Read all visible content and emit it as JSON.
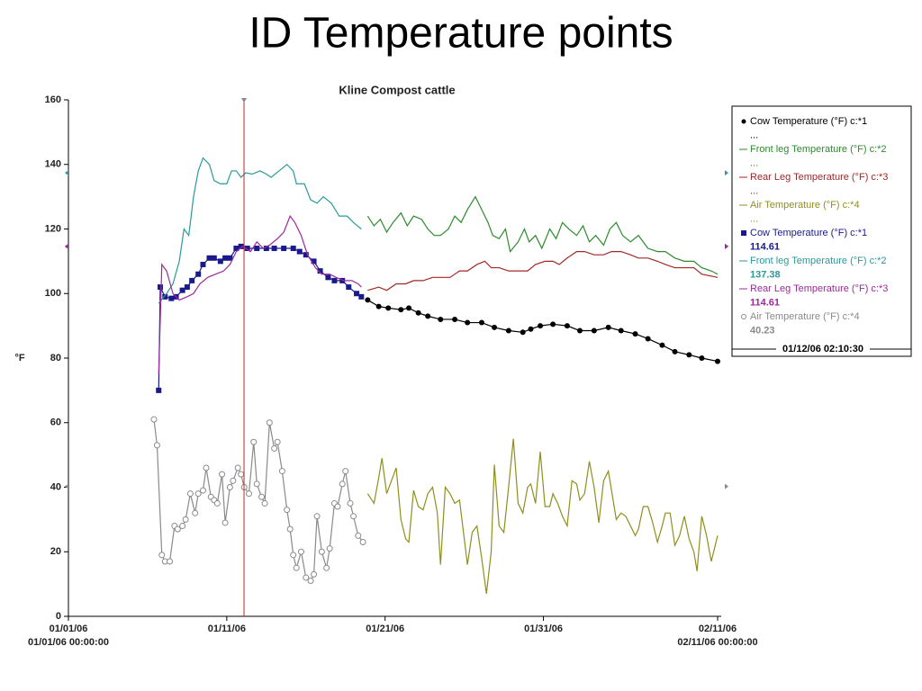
{
  "title": "ID Temperature points",
  "chart_data": {
    "type": "line",
    "title": "Kline Compost cattle",
    "y_label": "°F",
    "xlim": [
      0,
      41
    ],
    "xticks": [
      {
        "value": 0,
        "label": "01/01/06"
      },
      {
        "value": 10,
        "label": "01/11/06"
      },
      {
        "value": 20,
        "label": "01/21/06"
      },
      {
        "value": 30,
        "label": "01/31/06"
      },
      {
        "value": 41,
        "label": "02/11/06"
      }
    ],
    "x_range_labels": [
      "01/01/06 00:00:00",
      "02/11/06 00:00:00"
    ],
    "ylim": [
      0,
      160
    ],
    "yticks": [
      0,
      20,
      40,
      60,
      80,
      100,
      120,
      140,
      160
    ],
    "cursor": {
      "x": 11.09,
      "label": "01/12/06 02:10:30",
      "color": "#cc2222"
    },
    "series": [
      {
        "name": "Cow Temperature (°F) c:*1",
        "legend_value": "...",
        "color": "#000000",
        "marker": "circle",
        "x": [
          18.9,
          19.6,
          20.2,
          21.0,
          21.5,
          22.1,
          22.7,
          23.5,
          24.4,
          25.2,
          26.1,
          26.9,
          27.8,
          28.7,
          29.2,
          29.8,
          30.6,
          31.5,
          32.3,
          33.2,
          34.1,
          34.9,
          35.8,
          36.6,
          37.5,
          38.3,
          39.2,
          40.0,
          41.0
        ],
        "values": [
          98,
          96,
          95.5,
          95,
          95.5,
          94,
          93,
          92,
          92,
          91,
          91,
          89.5,
          88.5,
          88,
          89,
          90,
          90.5,
          90,
          88.5,
          88.5,
          89.5,
          88.5,
          87.5,
          86,
          84,
          82,
          81,
          80,
          79
        ]
      },
      {
        "name": "Front leg Temperature (°F) c:*2",
        "legend_value": "...",
        "color": "#2e8b2e",
        "marker": "none",
        "x": [
          18.9,
          19.3,
          19.7,
          20.1,
          20.5,
          21.0,
          21.4,
          21.8,
          22.3,
          22.7,
          23.1,
          23.5,
          24.0,
          24.4,
          24.8,
          25.2,
          25.7,
          26.1,
          26.5,
          26.8,
          27.2,
          27.6,
          27.9,
          28.4,
          28.8,
          29.1,
          29.5,
          29.9,
          30.4,
          30.8,
          31.2,
          31.6,
          32.1,
          32.5,
          32.9,
          33.3,
          33.8,
          34.2,
          34.6,
          35.0,
          35.5,
          36.0,
          36.6,
          37.2,
          37.7,
          38.3,
          38.9,
          39.5,
          40.0,
          40.6,
          41.0
        ],
        "values": [
          124,
          121,
          123,
          119,
          122,
          125,
          121,
          124,
          123,
          120,
          118,
          118,
          120,
          124,
          122,
          126,
          130,
          126,
          122,
          118,
          117,
          120,
          113,
          116,
          120,
          116,
          118,
          114,
          120,
          117,
          122,
          120,
          118,
          121,
          116,
          118,
          115,
          120,
          122,
          118,
          116,
          118,
          114,
          113,
          113,
          111,
          110,
          110,
          108,
          107,
          106
        ]
      },
      {
        "name": "Rear Leg Temperature (°F) c:*3",
        "legend_value": "...",
        "color": "#a02828",
        "marker": "none",
        "x": [
          18.9,
          19.6,
          20.1,
          20.7,
          21.3,
          21.8,
          22.4,
          23.0,
          23.5,
          24.1,
          24.7,
          25.2,
          25.8,
          26.3,
          26.7,
          27.2,
          27.8,
          28.4,
          29.0,
          29.5,
          30.1,
          30.6,
          31.0,
          31.5,
          32.1,
          32.6,
          33.2,
          33.8,
          34.3,
          34.9,
          35.5,
          36.0,
          36.6,
          37.2,
          37.7,
          38.3,
          38.9,
          39.5,
          40.0,
          41.0
        ],
        "values": [
          101,
          102,
          101,
          103,
          103,
          104,
          104,
          105,
          105,
          105,
          107,
          107,
          109,
          110,
          108,
          108,
          107,
          107,
          107,
          109,
          110,
          110,
          109,
          111,
          113,
          113,
          112,
          112,
          113,
          113,
          112,
          111,
          111,
          110,
          109,
          108,
          108,
          108,
          106,
          105
        ]
      },
      {
        "name": "Air Temperature (°F) c:*4",
        "legend_value": "...",
        "color": "#8f8f1e",
        "marker": "none",
        "x": [
          18.9,
          19.3,
          19.6,
          19.8,
          20.1,
          20.4,
          20.7,
          21.0,
          21.3,
          21.5,
          21.8,
          22.1,
          22.4,
          22.7,
          23.0,
          23.3,
          23.5,
          23.8,
          24.1,
          24.4,
          24.7,
          25.0,
          25.2,
          25.5,
          25.8,
          26.1,
          26.4,
          26.7,
          26.9,
          27.2,
          27.5,
          27.8,
          28.1,
          28.4,
          28.7,
          29.0,
          29.2,
          29.5,
          29.8,
          30.1,
          30.4,
          30.6,
          30.9,
          31.2,
          31.5,
          31.8,
          32.1,
          32.3,
          32.6,
          32.9,
          33.2,
          33.5,
          33.8,
          34.1,
          34.3,
          34.6,
          34.9,
          35.2,
          35.5,
          35.8,
          36.0,
          36.3,
          36.6,
          36.9,
          37.2,
          37.5,
          37.7,
          38.0,
          38.3,
          38.6,
          38.9,
          39.2,
          39.5,
          39.7,
          40.0,
          40.3,
          40.6,
          41.0
        ],
        "values": [
          38,
          35,
          43,
          49,
          38,
          42,
          46,
          30,
          24,
          23,
          39,
          34,
          33,
          38,
          40,
          32,
          16,
          40,
          38,
          35,
          36,
          24,
          16,
          26,
          28,
          18,
          7,
          20,
          47,
          28,
          26,
          40,
          55,
          35,
          32,
          40,
          41,
          35,
          51,
          34,
          34,
          38,
          35,
          31,
          28,
          42,
          41,
          36,
          38,
          48,
          40,
          29,
          42,
          45,
          39,
          30,
          32,
          31,
          28,
          25,
          27,
          34,
          34,
          29,
          23,
          28,
          32,
          32,
          22,
          25,
          31,
          24,
          20,
          14,
          31,
          25,
          17,
          25
        ]
      },
      {
        "name": "Cow Temperature (°F) c:*1",
        "legend_value": 114.61,
        "color": "#1a1a8c",
        "marker": "square",
        "x": [
          5.7,
          5.8,
          6.1,
          6.5,
          6.8,
          7.2,
          7.5,
          7.8,
          8.2,
          8.5,
          8.9,
          9.2,
          9.6,
          9.9,
          10.2,
          10.6,
          10.9,
          11.3,
          11.9,
          12.5,
          13.0,
          13.6,
          14.2,
          14.6,
          15.0,
          15.5,
          15.9,
          16.4,
          16.8,
          17.3,
          17.7,
          18.2,
          18.5
        ],
        "values": [
          70,
          102,
          99,
          98.5,
          99,
          101,
          102,
          104,
          106,
          109,
          111,
          111,
          110,
          111,
          111,
          114,
          114.6,
          114,
          114,
          114,
          114,
          114,
          114,
          113,
          112,
          110,
          107,
          105,
          104,
          104,
          102,
          100,
          99
        ]
      },
      {
        "name": "Front leg Temperature (°F) c:*2",
        "legend_value": 137.38,
        "color": "#2a9a9a",
        "marker": "none",
        "x": [
          5.7,
          6.2,
          6.6,
          7.0,
          7.3,
          7.6,
          7.9,
          8.2,
          8.5,
          8.9,
          9.2,
          9.6,
          10.0,
          10.3,
          10.6,
          10.9,
          11.2,
          11.6,
          12.1,
          12.5,
          12.8,
          13.3,
          13.8,
          14.2,
          14.4,
          14.9,
          15.3,
          15.7,
          16.1,
          16.6,
          17.1,
          17.6,
          18.0,
          18.5
        ],
        "values": [
          97,
          100,
          103,
          110,
          120,
          118,
          130,
          138,
          142,
          140,
          135,
          134,
          134,
          138,
          138,
          136,
          137.4,
          137,
          138,
          137,
          136,
          138,
          140,
          138,
          134,
          134,
          129,
          128,
          130,
          128,
          124,
          124,
          122,
          120
        ]
      },
      {
        "name": "Rear Leg Temperature (°F) c:*3",
        "legend_value": 114.61,
        "color": "#9a2a9a",
        "marker": "none",
        "x": [
          5.7,
          5.9,
          6.2,
          6.6,
          7.0,
          7.5,
          7.9,
          8.3,
          8.8,
          9.3,
          9.8,
          10.2,
          10.6,
          11.0,
          11.5,
          11.9,
          12.3,
          12.7,
          13.2,
          13.6,
          14.0,
          14.3,
          14.7,
          15.1,
          15.6,
          16.0,
          16.5,
          16.9,
          17.4,
          17.9,
          18.3,
          18.5
        ],
        "values": [
          75,
          109,
          107,
          100,
          98,
          99,
          100,
          103,
          105,
          106,
          107,
          109,
          113,
          114.6,
          113,
          116,
          114,
          115,
          117,
          119,
          124,
          122,
          118,
          112,
          108,
          106,
          106,
          105,
          104,
          104,
          103,
          102
        ]
      },
      {
        "name": "Air Temperature (°F) c:*4",
        "legend_value": 40.23,
        "color": "#8a8a8a",
        "marker": "open-circle",
        "x": [
          5.4,
          5.6,
          5.9,
          6.1,
          6.4,
          6.7,
          6.9,
          7.2,
          7.4,
          7.7,
          8.0,
          8.2,
          8.5,
          8.7,
          9.0,
          9.2,
          9.4,
          9.7,
          9.9,
          10.2,
          10.4,
          10.7,
          10.9,
          11.1,
          11.4,
          11.7,
          11.9,
          12.2,
          12.4,
          12.7,
          13.0,
          13.2,
          13.5,
          13.8,
          14.0,
          14.2,
          14.4,
          14.7,
          15.0,
          15.3,
          15.5,
          15.7,
          16.0,
          16.3,
          16.5,
          16.8,
          17.0,
          17.3,
          17.5,
          17.8,
          18.0,
          18.3,
          18.6
        ],
        "values": [
          61,
          53,
          19,
          17,
          17,
          28,
          27,
          28,
          30,
          38,
          32,
          38,
          39,
          46,
          37,
          36,
          35,
          44,
          29,
          40,
          42,
          46,
          44,
          40,
          38,
          54,
          41,
          37,
          35,
          60,
          52,
          54,
          45,
          33,
          27,
          19,
          15,
          20,
          12,
          11,
          13,
          31,
          20,
          15,
          21,
          35,
          34,
          41,
          45,
          35,
          31,
          25,
          23
        ]
      }
    ]
  }
}
